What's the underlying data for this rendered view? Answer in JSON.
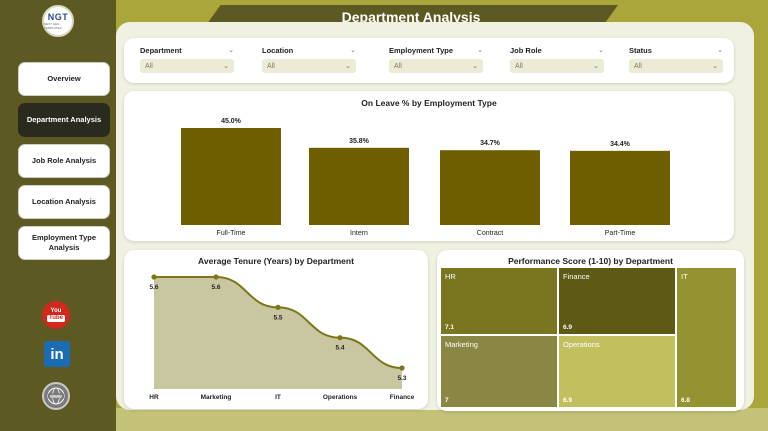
{
  "logo": {
    "text": "NGT",
    "subtext": "NEXT GEN TEMPLATES"
  },
  "title": "Department Analysis",
  "nav": [
    {
      "label": "Overview",
      "active": false
    },
    {
      "label": "Department Analysis",
      "active": true
    },
    {
      "label": "Job Role Analysis",
      "active": false
    },
    {
      "label": "Location Analysis",
      "active": false
    },
    {
      "label": "Employment Type Analysis",
      "active": false
    }
  ],
  "social": {
    "youtube_top": "You",
    "youtube_bottom": "Tube",
    "linkedin": "in",
    "web": "www"
  },
  "filters": [
    {
      "label": "Department",
      "value": "All"
    },
    {
      "label": "Location",
      "value": "All"
    },
    {
      "label": "Employment Type",
      "value": "All"
    },
    {
      "label": "Job Role",
      "value": "All"
    },
    {
      "label": "Status",
      "value": "All"
    }
  ],
  "colors": {
    "bar": "#6e5e00",
    "line": "#7d7618",
    "area": "#c9c7a2",
    "treemap": [
      "#7a7620",
      "#5c5a14",
      "#959232",
      "#8a8745",
      "#c2bf5e"
    ]
  },
  "chart_data": [
    {
      "type": "bar",
      "title": "On Leave % by Employment Type",
      "categories": [
        "Full-Time",
        "Intern",
        "Contract",
        "Part-Time"
      ],
      "values": [
        45.0,
        35.8,
        34.7,
        34.4
      ],
      "value_labels": [
        "45.0%",
        "35.8%",
        "34.7%",
        "34.4%"
      ],
      "unit": "%",
      "ylim": [
        0,
        45.0
      ],
      "grid": false,
      "legend": "none"
    },
    {
      "type": "area",
      "title": "Average Tenure (Years) by Department",
      "categories": [
        "HR",
        "Marketing",
        "IT",
        "Operations",
        "Finance"
      ],
      "values": [
        5.6,
        5.6,
        5.5,
        5.4,
        5.3
      ],
      "grid": false,
      "legend": "none"
    },
    {
      "type": "treemap",
      "title": "Performance Score (1-10) by Department",
      "categories": [
        "HR",
        "Finance",
        "Marketing",
        "Operations",
        "IT"
      ],
      "values": [
        7.1,
        6.9,
        7.0,
        6.9,
        6.8
      ]
    }
  ]
}
